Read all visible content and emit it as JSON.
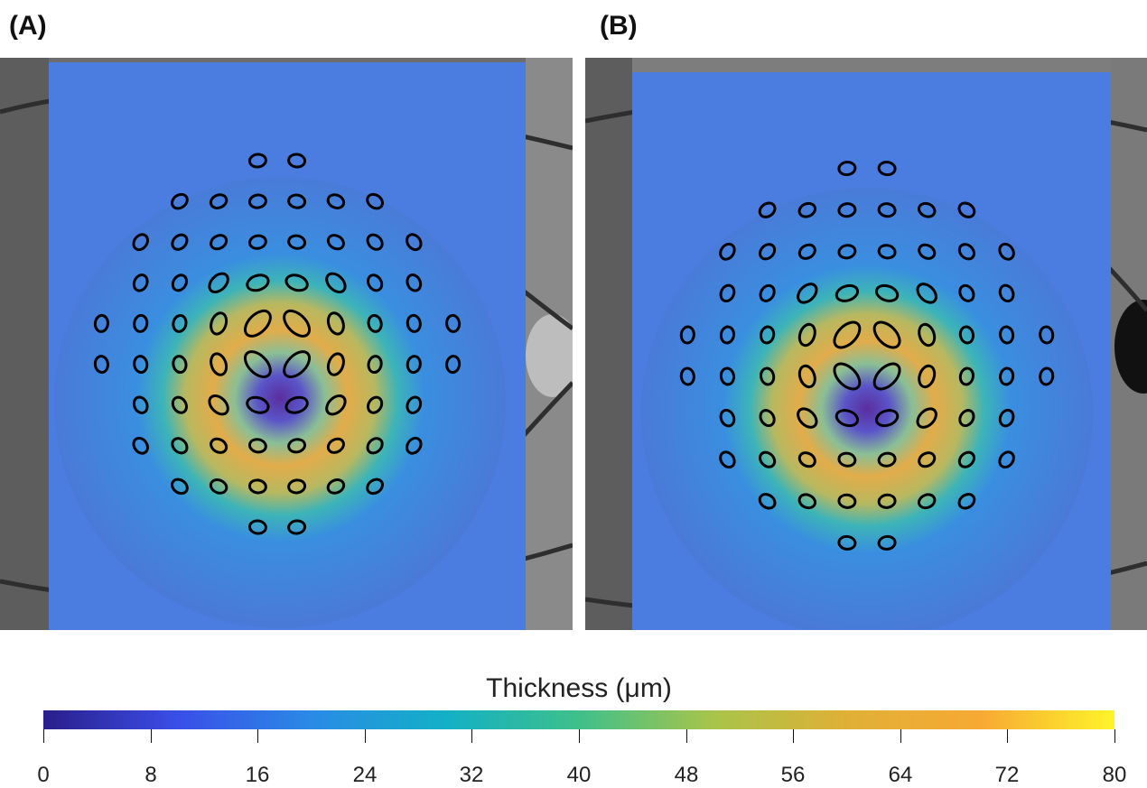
{
  "panels": [
    {
      "label": "(A)"
    },
    {
      "label": "(B)"
    }
  ],
  "colorbar": {
    "title": "Thickness (μm)",
    "ticks": [
      "0",
      "8",
      "16",
      "24",
      "32",
      "40",
      "48",
      "56",
      "64",
      "72",
      "80"
    ],
    "colors": [
      "#2a1e8a",
      "#3a4ee8",
      "#2a8ae6",
      "#13b0c6",
      "#3fc08a",
      "#a8c44a",
      "#e0b036",
      "#f7a934",
      "#fef42a"
    ]
  }
}
